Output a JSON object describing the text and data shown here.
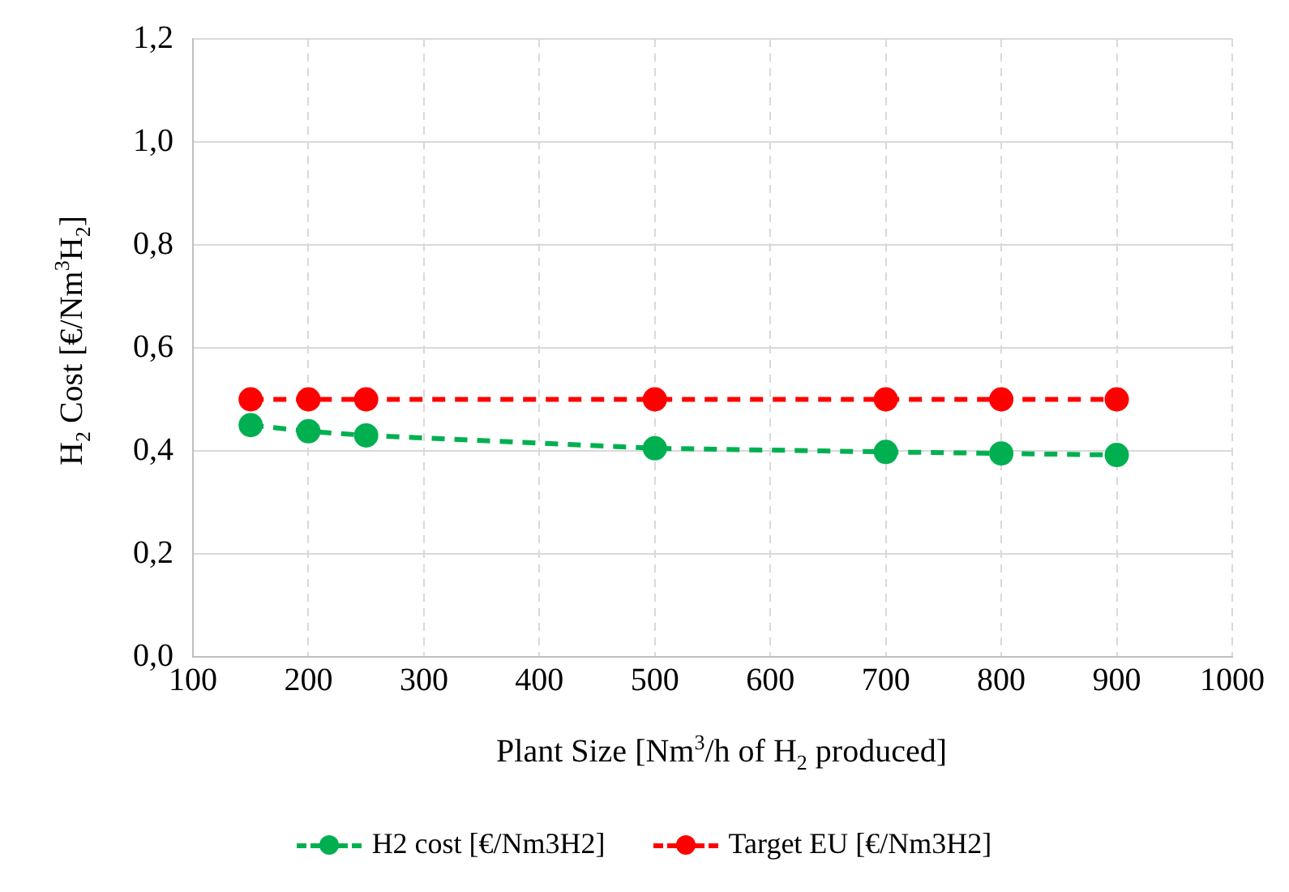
{
  "chart_data": {
    "type": "line",
    "xlabel": "Plant Size [Nm$^{3}$/h of H$_{2}$ produced]",
    "ylabel": "H$_{2}$ Cost [€/Nm$^{3}$H$_{2}$]",
    "x": [
      150,
      200,
      250,
      500,
      700,
      800,
      900
    ],
    "series": [
      {
        "name": "H2 cost [€/Nm3H2]",
        "color": "#00b050",
        "values": [
          0.45,
          0.438,
          0.43,
          0.405,
          0.398,
          0.395,
          0.392
        ]
      },
      {
        "name": "Target EU [€/Nm3H2]",
        "color": "#ff0000",
        "values": [
          0.5,
          0.5,
          0.5,
          0.5,
          0.5,
          0.5,
          0.5
        ]
      }
    ],
    "xlim": [
      100,
      1000
    ],
    "xticks": [
      100,
      200,
      300,
      400,
      500,
      600,
      700,
      800,
      900,
      1000
    ],
    "ylim": [
      0,
      1.2
    ],
    "yticks": [
      {
        "value": 0,
        "label": "0,0"
      },
      {
        "value": 0.2,
        "label": "0,2"
      },
      {
        "value": 0.4,
        "label": "0,4"
      },
      {
        "value": 0.6,
        "label": "0,6"
      },
      {
        "value": 0.8,
        "label": "0,8"
      },
      {
        "value": 1,
        "label": "1,0"
      },
      {
        "value": 1.2,
        "label": "1,2"
      }
    ],
    "grid": true,
    "legend": "bottom",
    "marker": "circle",
    "line_style": "dashed"
  }
}
